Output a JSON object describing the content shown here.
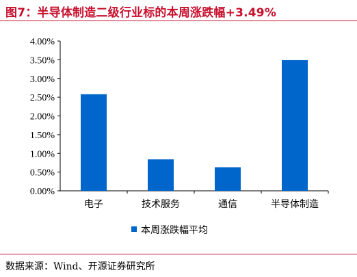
{
  "title": "图7：半导体制造二级行业标的本周涨跌幅+3.49%",
  "source": "数据来源：Wind、开源证券研究所",
  "colors": {
    "title": "#c8102e",
    "bar": "#0066cc",
    "rule": "#c8102e"
  },
  "chart_data": {
    "type": "bar",
    "categories": [
      "电子",
      "技术服务",
      "通信",
      "半导体制造"
    ],
    "series": [
      {
        "name": "本周涨跌幅平均",
        "values": [
          2.58,
          0.84,
          0.63,
          3.49
        ]
      }
    ],
    "ylim": [
      0,
      4
    ],
    "yticks": [
      "0.00%",
      "0.50%",
      "1.00%",
      "1.50%",
      "2.00%",
      "2.50%",
      "3.00%",
      "3.50%",
      "4.00%"
    ],
    "grid": false,
    "legend": "bottom-center"
  }
}
